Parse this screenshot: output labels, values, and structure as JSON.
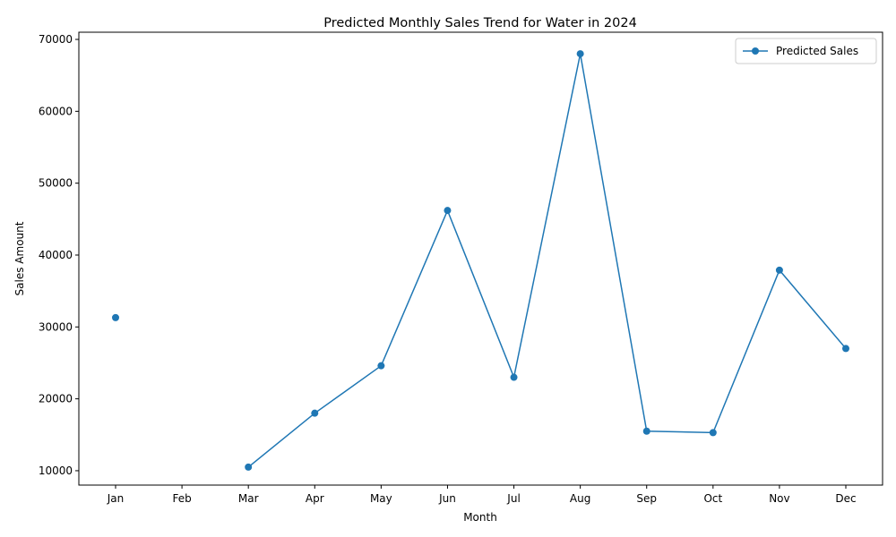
{
  "chart_data": {
    "type": "line",
    "title": "Predicted Monthly Sales Trend for Water in 2024",
    "xlabel": "Month",
    "ylabel": "Sales Amount",
    "categories": [
      "Jan",
      "Feb",
      "Mar",
      "Apr",
      "May",
      "Jun",
      "Jul",
      "Aug",
      "Sep",
      "Oct",
      "Nov",
      "Dec"
    ],
    "series": [
      {
        "name": "Predicted Sales",
        "values": [
          31300,
          null,
          10500,
          18000,
          24600,
          46200,
          23000,
          68000,
          15500,
          15300,
          37900,
          27000
        ]
      }
    ],
    "ylim": [
      8000,
      71000
    ],
    "yticks": [
      10000,
      20000,
      30000,
      40000,
      50000,
      60000,
      70000
    ],
    "grid": false,
    "legend_position": "top-right",
    "line_color": "#1f77b4",
    "marker": "circle"
  }
}
